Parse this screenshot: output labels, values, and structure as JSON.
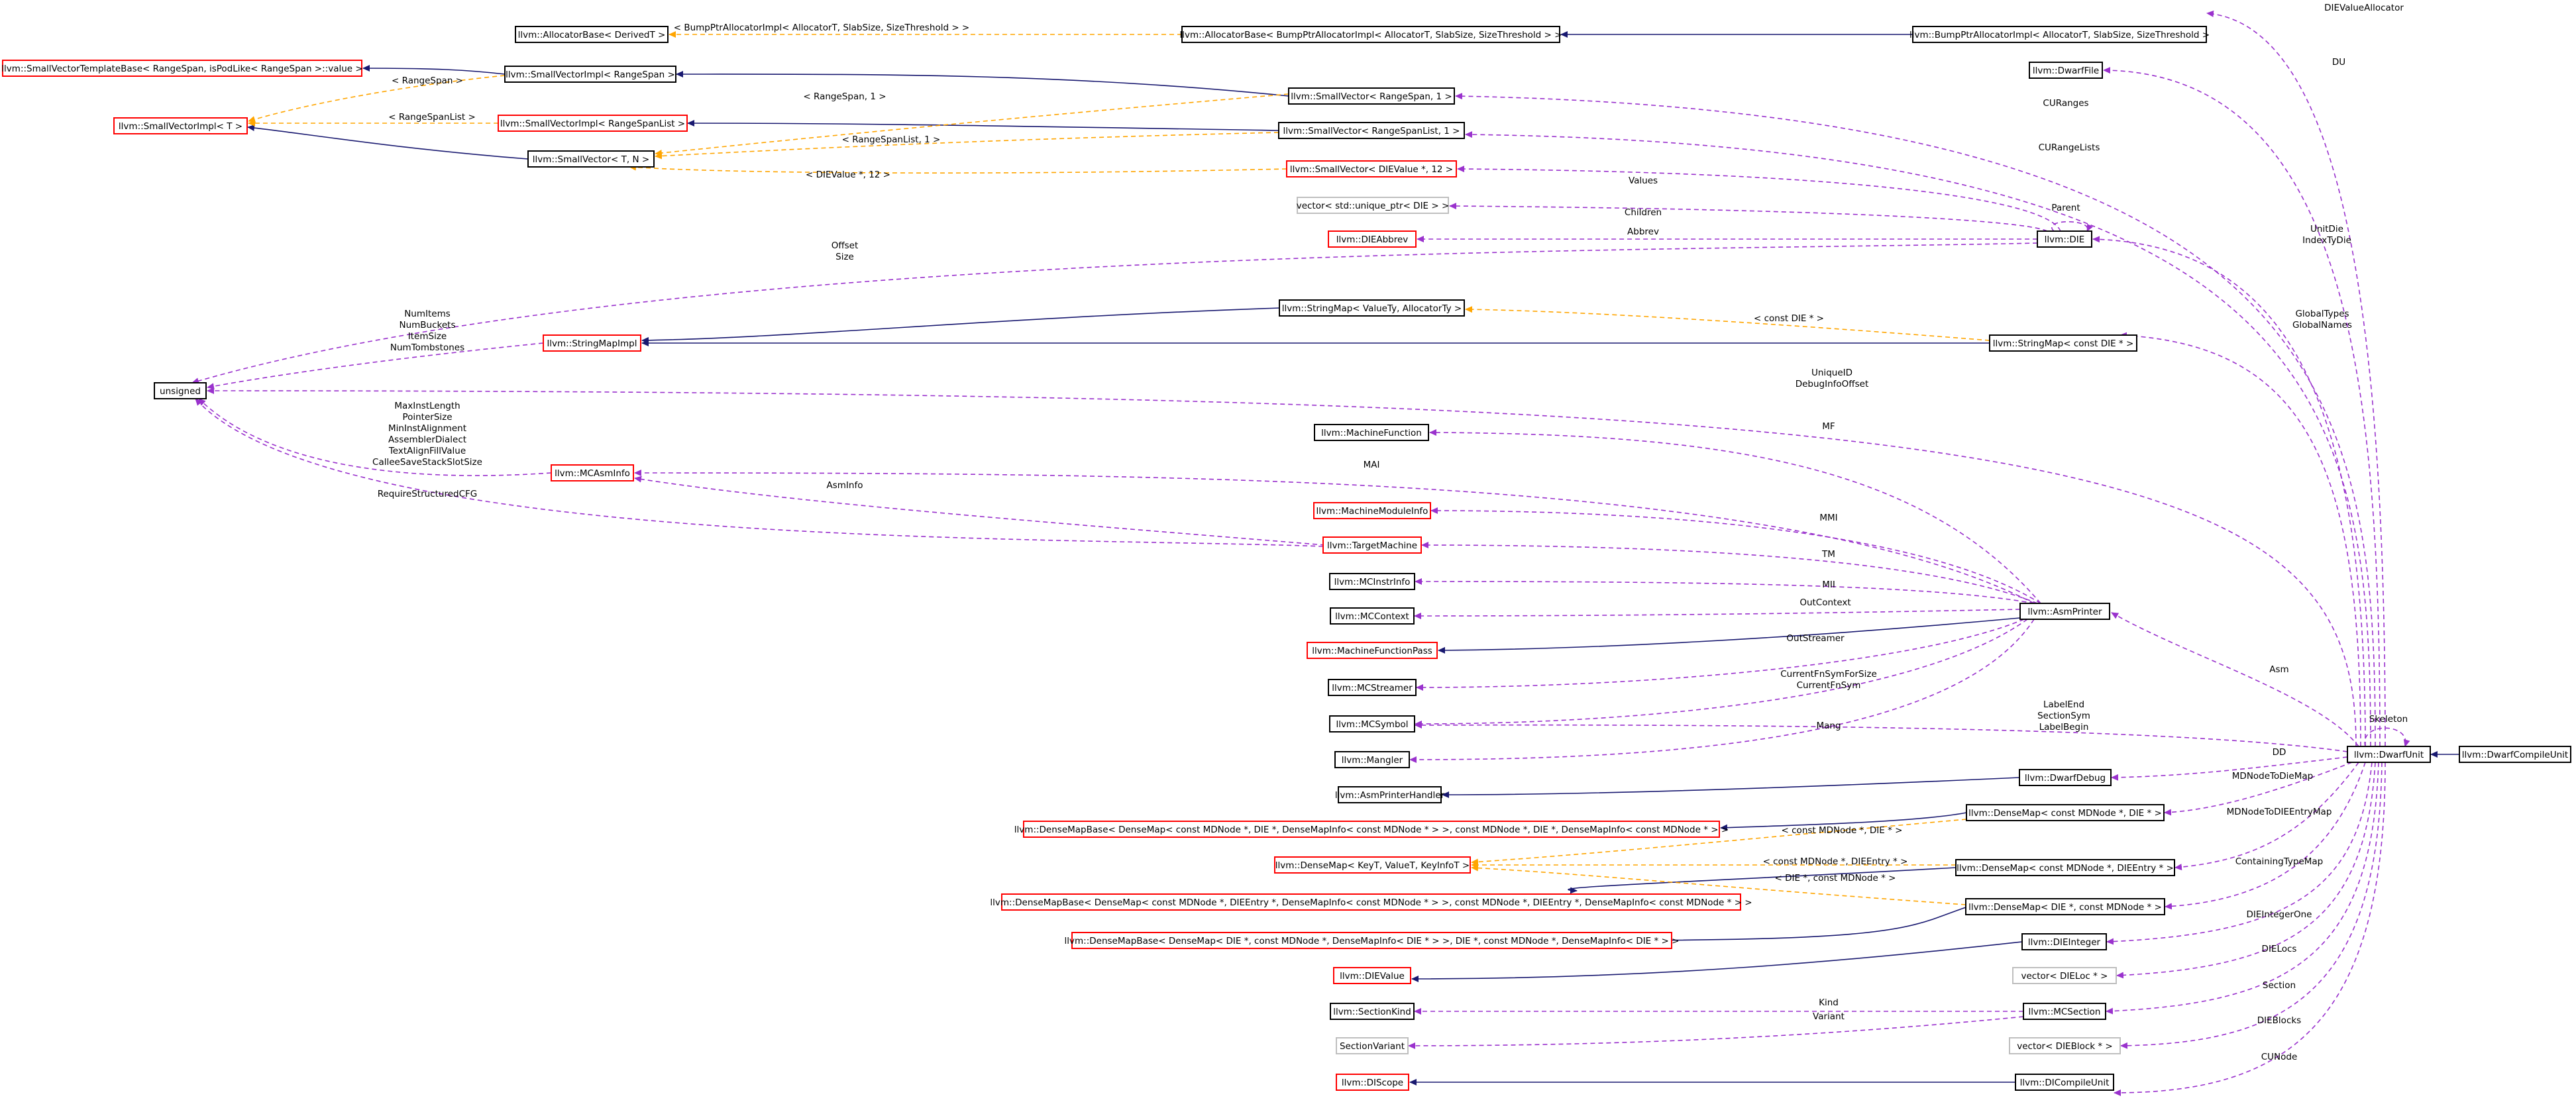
{
  "diagram": {
    "nodes": [
      {
        "id": "dcu",
        "label": "llvm::DwarfCompileUnit",
        "kind": "focus"
      },
      {
        "id": "du",
        "label": "llvm::DwarfUnit",
        "kind": "normal"
      },
      {
        "id": "bpa",
        "label": "llvm::BumpPtrAllocatorImpl< AllocatorT, SlabSize, SizeThreshold >",
        "kind": "normal"
      },
      {
        "id": "aab",
        "label": "llvm::AllocatorBase< BumpPtrAllocatorImpl< AllocatorT, SlabSize, SizeThreshold > >",
        "kind": "normal"
      },
      {
        "id": "abd",
        "label": "llvm::AllocatorBase< DerivedT >",
        "kind": "normal"
      },
      {
        "id": "dfile",
        "label": "llvm::DwarfFile",
        "kind": "normal"
      },
      {
        "id": "svrs1",
        "label": "llvm::SmallVector< RangeSpan, 1 >",
        "kind": "normal"
      },
      {
        "id": "svirs",
        "label": "llvm::SmallVectorImpl< RangeSpan >",
        "kind": "normal"
      },
      {
        "id": "svtb",
        "label": "llvm::SmallVectorTemplateBase< RangeSpan, isPodLike< RangeSpan >::value >",
        "kind": "red"
      },
      {
        "id": "svit",
        "label": "llvm::SmallVectorImpl< T >",
        "kind": "red"
      },
      {
        "id": "svrsl",
        "label": "llvm::SmallVector< RangeSpanList, 1 >",
        "kind": "normal"
      },
      {
        "id": "svirsl",
        "label": "llvm::SmallVectorImpl< RangeSpanList >",
        "kind": "red"
      },
      {
        "id": "svtn",
        "label": "llvm::SmallVector< T, N >",
        "kind": "normal"
      },
      {
        "id": "svdv",
        "label": "llvm::SmallVector< DIEValue *, 12 >",
        "kind": "red"
      },
      {
        "id": "vecdie",
        "label": "vector< std::unique_ptr< DIE > >",
        "kind": "gray"
      },
      {
        "id": "die",
        "label": "llvm::DIE",
        "kind": "normal"
      },
      {
        "id": "dieabbrev",
        "label": "llvm::DIEAbbrev",
        "kind": "red"
      },
      {
        "id": "unsigned",
        "label": "unsigned",
        "kind": "normal"
      },
      {
        "id": "smvt",
        "label": "llvm::StringMap< ValueTy, AllocatorTy >",
        "kind": "normal"
      },
      {
        "id": "smimpl",
        "label": "llvm::StringMapImpl",
        "kind": "red"
      },
      {
        "id": "smcd",
        "label": "llvm::StringMap< const DIE * >",
        "kind": "normal"
      },
      {
        "id": "mf",
        "label": "llvm::MachineFunction",
        "kind": "normal"
      },
      {
        "id": "mcai",
        "label": "llvm::MCAsmInfo",
        "kind": "red"
      },
      {
        "id": "mmi",
        "label": "llvm::MachineModuleInfo",
        "kind": "red"
      },
      {
        "id": "tm",
        "label": "llvm::TargetMachine",
        "kind": "red"
      },
      {
        "id": "mcii",
        "label": "llvm::MCInstrInfo",
        "kind": "normal"
      },
      {
        "id": "mcctx",
        "label": "llvm::MCContext",
        "kind": "normal"
      },
      {
        "id": "ap",
        "label": "llvm::AsmPrinter",
        "kind": "normal"
      },
      {
        "id": "mfp",
        "label": "llvm::MachineFunctionPass",
        "kind": "red"
      },
      {
        "id": "mcs",
        "label": "llvm::MCStreamer",
        "kind": "normal"
      },
      {
        "id": "mcsym",
        "label": "llvm::MCSymbol",
        "kind": "normal"
      },
      {
        "id": "mangler",
        "label": "llvm::Mangler",
        "kind": "normal"
      },
      {
        "id": "aph",
        "label": "llvm::AsmPrinterHandler",
        "kind": "normal"
      },
      {
        "id": "ddbg",
        "label": "llvm::DwarfDebug",
        "kind": "normal"
      },
      {
        "id": "dmbase1",
        "label": "llvm::DenseMapBase< DenseMap< const MDNode *, DIE *, DenseMapInfo< const MDNode * > >, const MDNode *, DIE *, DenseMapInfo< const MDNode * > >",
        "kind": "red"
      },
      {
        "id": "dm1",
        "label": "llvm::DenseMap< const MDNode *, DIE * >",
        "kind": "normal"
      },
      {
        "id": "dmkv",
        "label": "llvm::DenseMap< KeyT, ValueT, KeyInfoT >",
        "kind": "red"
      },
      {
        "id": "dm2",
        "label": "llvm::DenseMap< const MDNode *, DIEEntry * >",
        "kind": "normal"
      },
      {
        "id": "dmbase2",
        "label": "llvm::DenseMapBase< DenseMap< const MDNode *, DIEEntry *, DenseMapInfo< const MDNode * > >, const MDNode *, DIEEntry *, DenseMapInfo< const MDNode * > >",
        "kind": "red"
      },
      {
        "id": "dm3",
        "label": "llvm::DenseMap< DIE *, const MDNode * >",
        "kind": "normal"
      },
      {
        "id": "dmbase3",
        "label": "llvm::DenseMapBase< DenseMap< DIE *, const MDNode *, DenseMapInfo< DIE * > >, DIE *, const MDNode *, DenseMapInfo< DIE * > >",
        "kind": "red"
      },
      {
        "id": "dieint",
        "label": "llvm::DIEInteger",
        "kind": "normal"
      },
      {
        "id": "dievalue",
        "label": "llvm::DIEValue",
        "kind": "red"
      },
      {
        "id": "vecdieloc",
        "label": "vector< DIELoc * >",
        "kind": "gray"
      },
      {
        "id": "mcsec",
        "label": "llvm::MCSection",
        "kind": "normal"
      },
      {
        "id": "seckind",
        "label": "llvm::SectionKind",
        "kind": "normal"
      },
      {
        "id": "secvar",
        "label": "SectionVariant",
        "kind": "gray"
      },
      {
        "id": "vecdieblk",
        "label": "vector< DIEBlock * >",
        "kind": "gray"
      },
      {
        "id": "dicu",
        "label": "llvm::DICompileUnit",
        "kind": "normal"
      },
      {
        "id": "discope",
        "label": "llvm::DIScope",
        "kind": "red"
      }
    ],
    "edge_labels": {
      "dvalloc": "DIEValueAllocator",
      "bpa_tmpl": "< BumpPtrAllocatorImpl< AllocatorT, SlabSize, SizeThreshold > >",
      "du": "DU",
      "curanges": "CURanges",
      "rangespan": "< RangeSpan >",
      "rangespan1": "< RangeSpan, 1 >",
      "rangespanlist": "< RangeSpanList >",
      "curangelists": "CURangeLists",
      "rangespanlist1": "< RangeSpanList, 1 >",
      "dievalue12": "< DIEValue *, 12 >",
      "values": "Values",
      "parent": "Parent",
      "children": "Children",
      "abbrev": "Abbrev",
      "offset": "Offset",
      "size": "Size",
      "unitdie": "UnitDie",
      "indextydie": "IndexTyDie",
      "globaltypes": "GlobalTypes",
      "globalnames": "GlobalNames",
      "constdie": "< const DIE * >",
      "numitems": "NumItems",
      "numbuckets": "NumBuckets",
      "itemsize": "ItemSize",
      "numtombstones": "NumTombstones",
      "uniqueid": "UniqueID",
      "debuginfooffset": "DebugInfoOffset",
      "mf": "MF",
      "maxinstlength": "MaxInstLength",
      "pointersize": "PointerSize",
      "mininstalignment": "MinInstAlignment",
      "assemblerdialect": "AssemblerDialect",
      "textalignfillvalue": "TextAlignFillValue",
      "calleesavestackslotsize": "CalleeSaveStackSlotSize",
      "mai": "MAI",
      "asminfo": "AsmInfo",
      "requirestructuredcfg": "RequireStructuredCFG",
      "mmi": "MMI",
      "tm": "TM",
      "mii": "MII",
      "outcontext": "OutContext",
      "outstreamer": "OutStreamer",
      "curfnsymforsize": "CurrentFnSymForSize",
      "curfnsym": "CurrentFnSym",
      "labelend": "LabelEnd",
      "sectionsym": "SectionSym",
      "labelbegin": "LabelBegin",
      "mang": "Mang",
      "skeleton": "Skeleton",
      "asm": "Asm",
      "dd": "DD",
      "mdnodetodiemap": "MDNodeToDieMap",
      "mdnode_die": "< const MDNode *, DIE * >",
      "mdnodetodieentrymap": "MDNodeToDIEEntryMap",
      "mdnode_dieentry": "< const MDNode *, DIEEntry * >",
      "die_mdnode": "< DIE *, const MDNode * >",
      "containingtypemap": "ContainingTypeMap",
      "dieintegerone": "DIEIntegerOne",
      "dielocs": "DIELocs",
      "kind": "Kind",
      "section": "Section",
      "variant": "Variant",
      "dieblocks": "DIEBlocks",
      "cunode": "CUNode"
    },
    "colors": {
      "inheritance": "#191970",
      "usage": "#9a32cd",
      "template": "#ffa500",
      "node_border": "#000000",
      "node_border_red": "#ff0000",
      "node_border_gray": "#bfbfbf",
      "focus_fill": "#bfbfbf"
    }
  }
}
